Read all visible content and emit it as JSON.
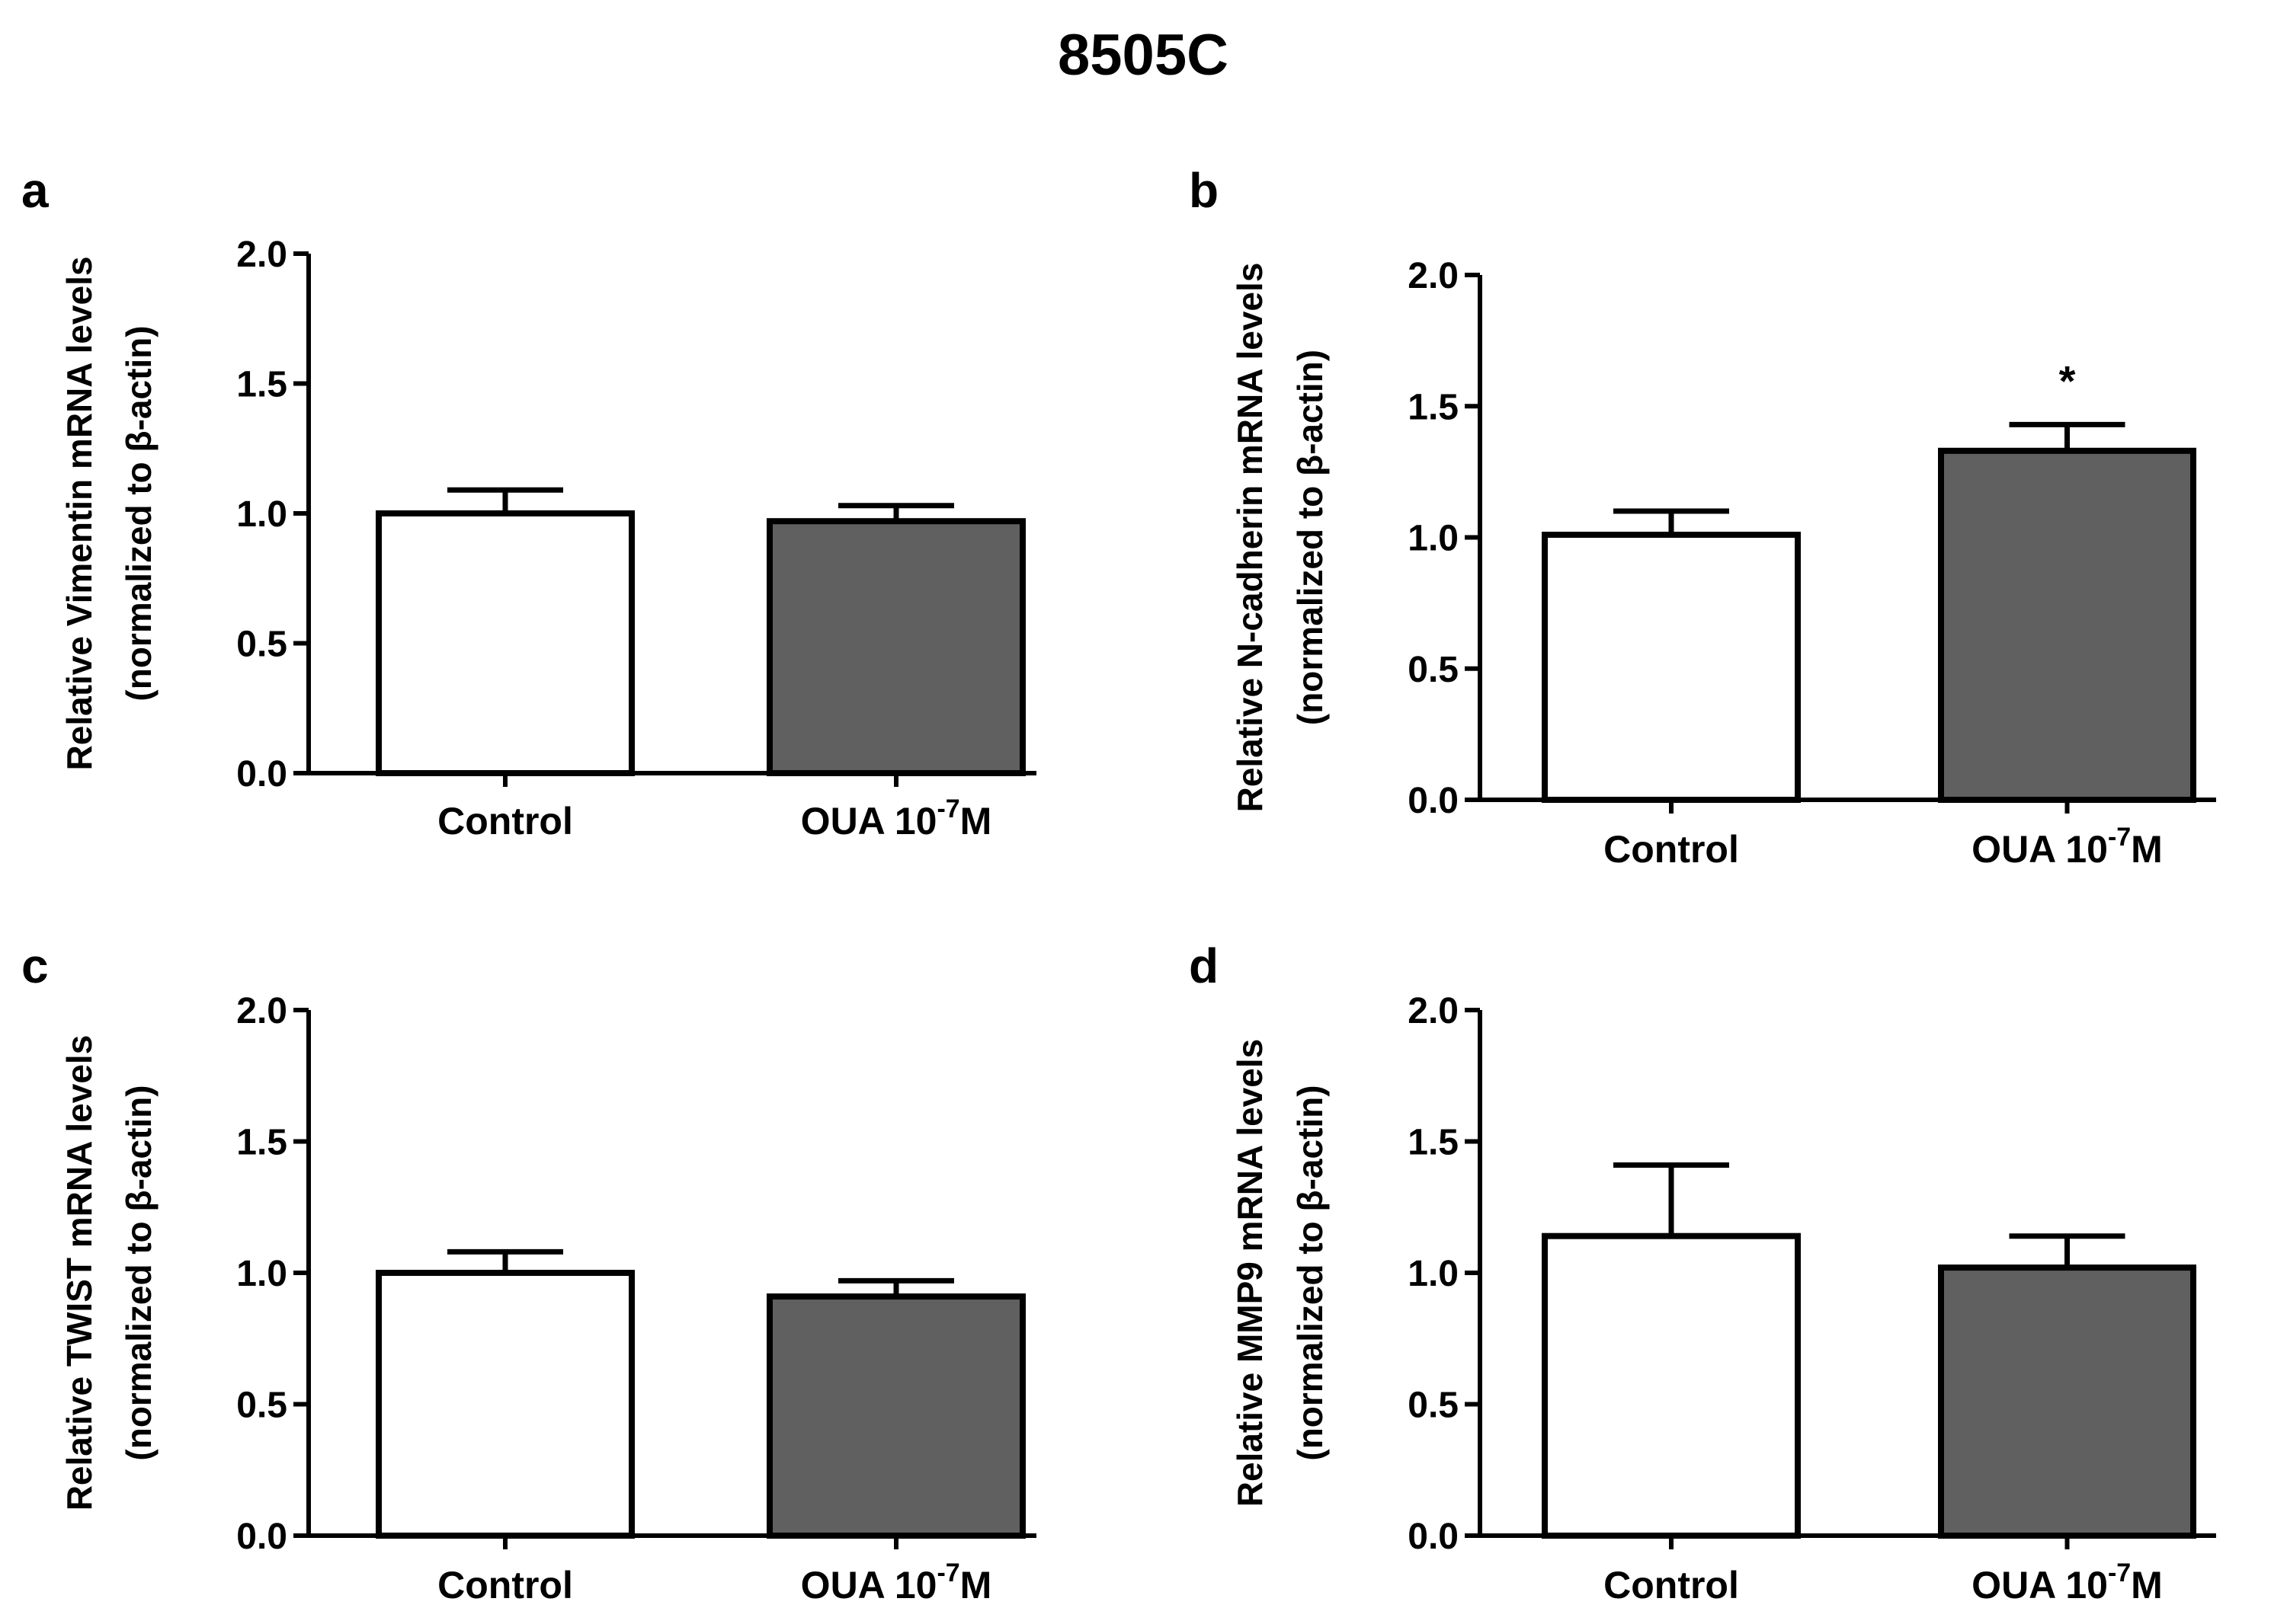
{
  "figure_title": "8505C",
  "chart_data": [
    {
      "panel": "a",
      "type": "bar",
      "title": "",
      "categories": [
        "Control",
        "OUA 10-7M"
      ],
      "category_labels": [
        {
          "main": "Control"
        },
        {
          "main": "OUA 10",
          "sup": "-7",
          "tail": "M"
        }
      ],
      "values": [
        1.0,
        0.97
      ],
      "errors": [
        0.09,
        0.06
      ],
      "bar_colors": [
        "#ffffff",
        "#606060"
      ],
      "significance": [
        "",
        ""
      ],
      "ylabel_line1": "Relative Vimentin mRNA levels",
      "ylabel_line2": "(normalized to β-actin)",
      "xlabel": "",
      "ylim": [
        0,
        2.0
      ],
      "yticks": [
        0.0,
        0.5,
        1.0,
        1.5,
        2.0
      ],
      "ytick_labels": [
        "0.0",
        "0.5",
        "1.0",
        "1.5",
        "2.0"
      ]
    },
    {
      "panel": "b",
      "type": "bar",
      "title": "",
      "categories": [
        "Control",
        "OUA 10-7M"
      ],
      "category_labels": [
        {
          "main": "Control"
        },
        {
          "main": "OUA 10",
          "sup": "-7",
          "tail": "M"
        }
      ],
      "values": [
        1.01,
        1.33
      ],
      "errors": [
        0.09,
        0.1
      ],
      "bar_colors": [
        "#ffffff",
        "#606060"
      ],
      "significance": [
        "",
        "*"
      ],
      "ylabel_line1": "Relative N-cadherin mRNA levels",
      "ylabel_line2": "(normalized to β-actin)",
      "xlabel": "",
      "ylim": [
        0,
        2.0
      ],
      "yticks": [
        0.0,
        0.5,
        1.0,
        1.5,
        2.0
      ],
      "ytick_labels": [
        "0.0",
        "0.5",
        "1.0",
        "1.5",
        "2.0"
      ]
    },
    {
      "panel": "c",
      "type": "bar",
      "title": "",
      "categories": [
        "Control",
        "OUA 10-7M"
      ],
      "category_labels": [
        {
          "main": "Control"
        },
        {
          "main": "OUA 10",
          "sup": "-7",
          "tail": "M"
        }
      ],
      "values": [
        1.0,
        0.91
      ],
      "errors": [
        0.08,
        0.06
      ],
      "bar_colors": [
        "#ffffff",
        "#606060"
      ],
      "significance": [
        "",
        ""
      ],
      "ylabel_line1": "Relative TWIST mRNA levels",
      "ylabel_line2": "(normalized to β-actin)",
      "xlabel": "",
      "ylim": [
        0,
        2.0
      ],
      "yticks": [
        0.0,
        0.5,
        1.0,
        1.5,
        2.0
      ],
      "ytick_labels": [
        "0.0",
        "0.5",
        "1.0",
        "1.5",
        "2.0"
      ]
    },
    {
      "panel": "d",
      "type": "bar",
      "title": "",
      "categories": [
        "Control",
        "OUA 10-7M"
      ],
      "category_labels": [
        {
          "main": "Control"
        },
        {
          "main": "OUA 10",
          "sup": "-7",
          "tail": "M"
        }
      ],
      "values": [
        1.14,
        1.02
      ],
      "errors": [
        0.27,
        0.12
      ],
      "bar_colors": [
        "#ffffff",
        "#606060"
      ],
      "significance": [
        "",
        ""
      ],
      "ylabel_line1": "Relative MMP9 mRNA levels",
      "ylabel_line2": "(normalized to β-actin)",
      "xlabel": "",
      "ylim": [
        0,
        2.0
      ],
      "yticks": [
        0.0,
        0.5,
        1.0,
        1.5,
        2.0
      ],
      "ytick_labels": [
        "0.0",
        "0.5",
        "1.0",
        "1.5",
        "2.0"
      ]
    }
  ]
}
